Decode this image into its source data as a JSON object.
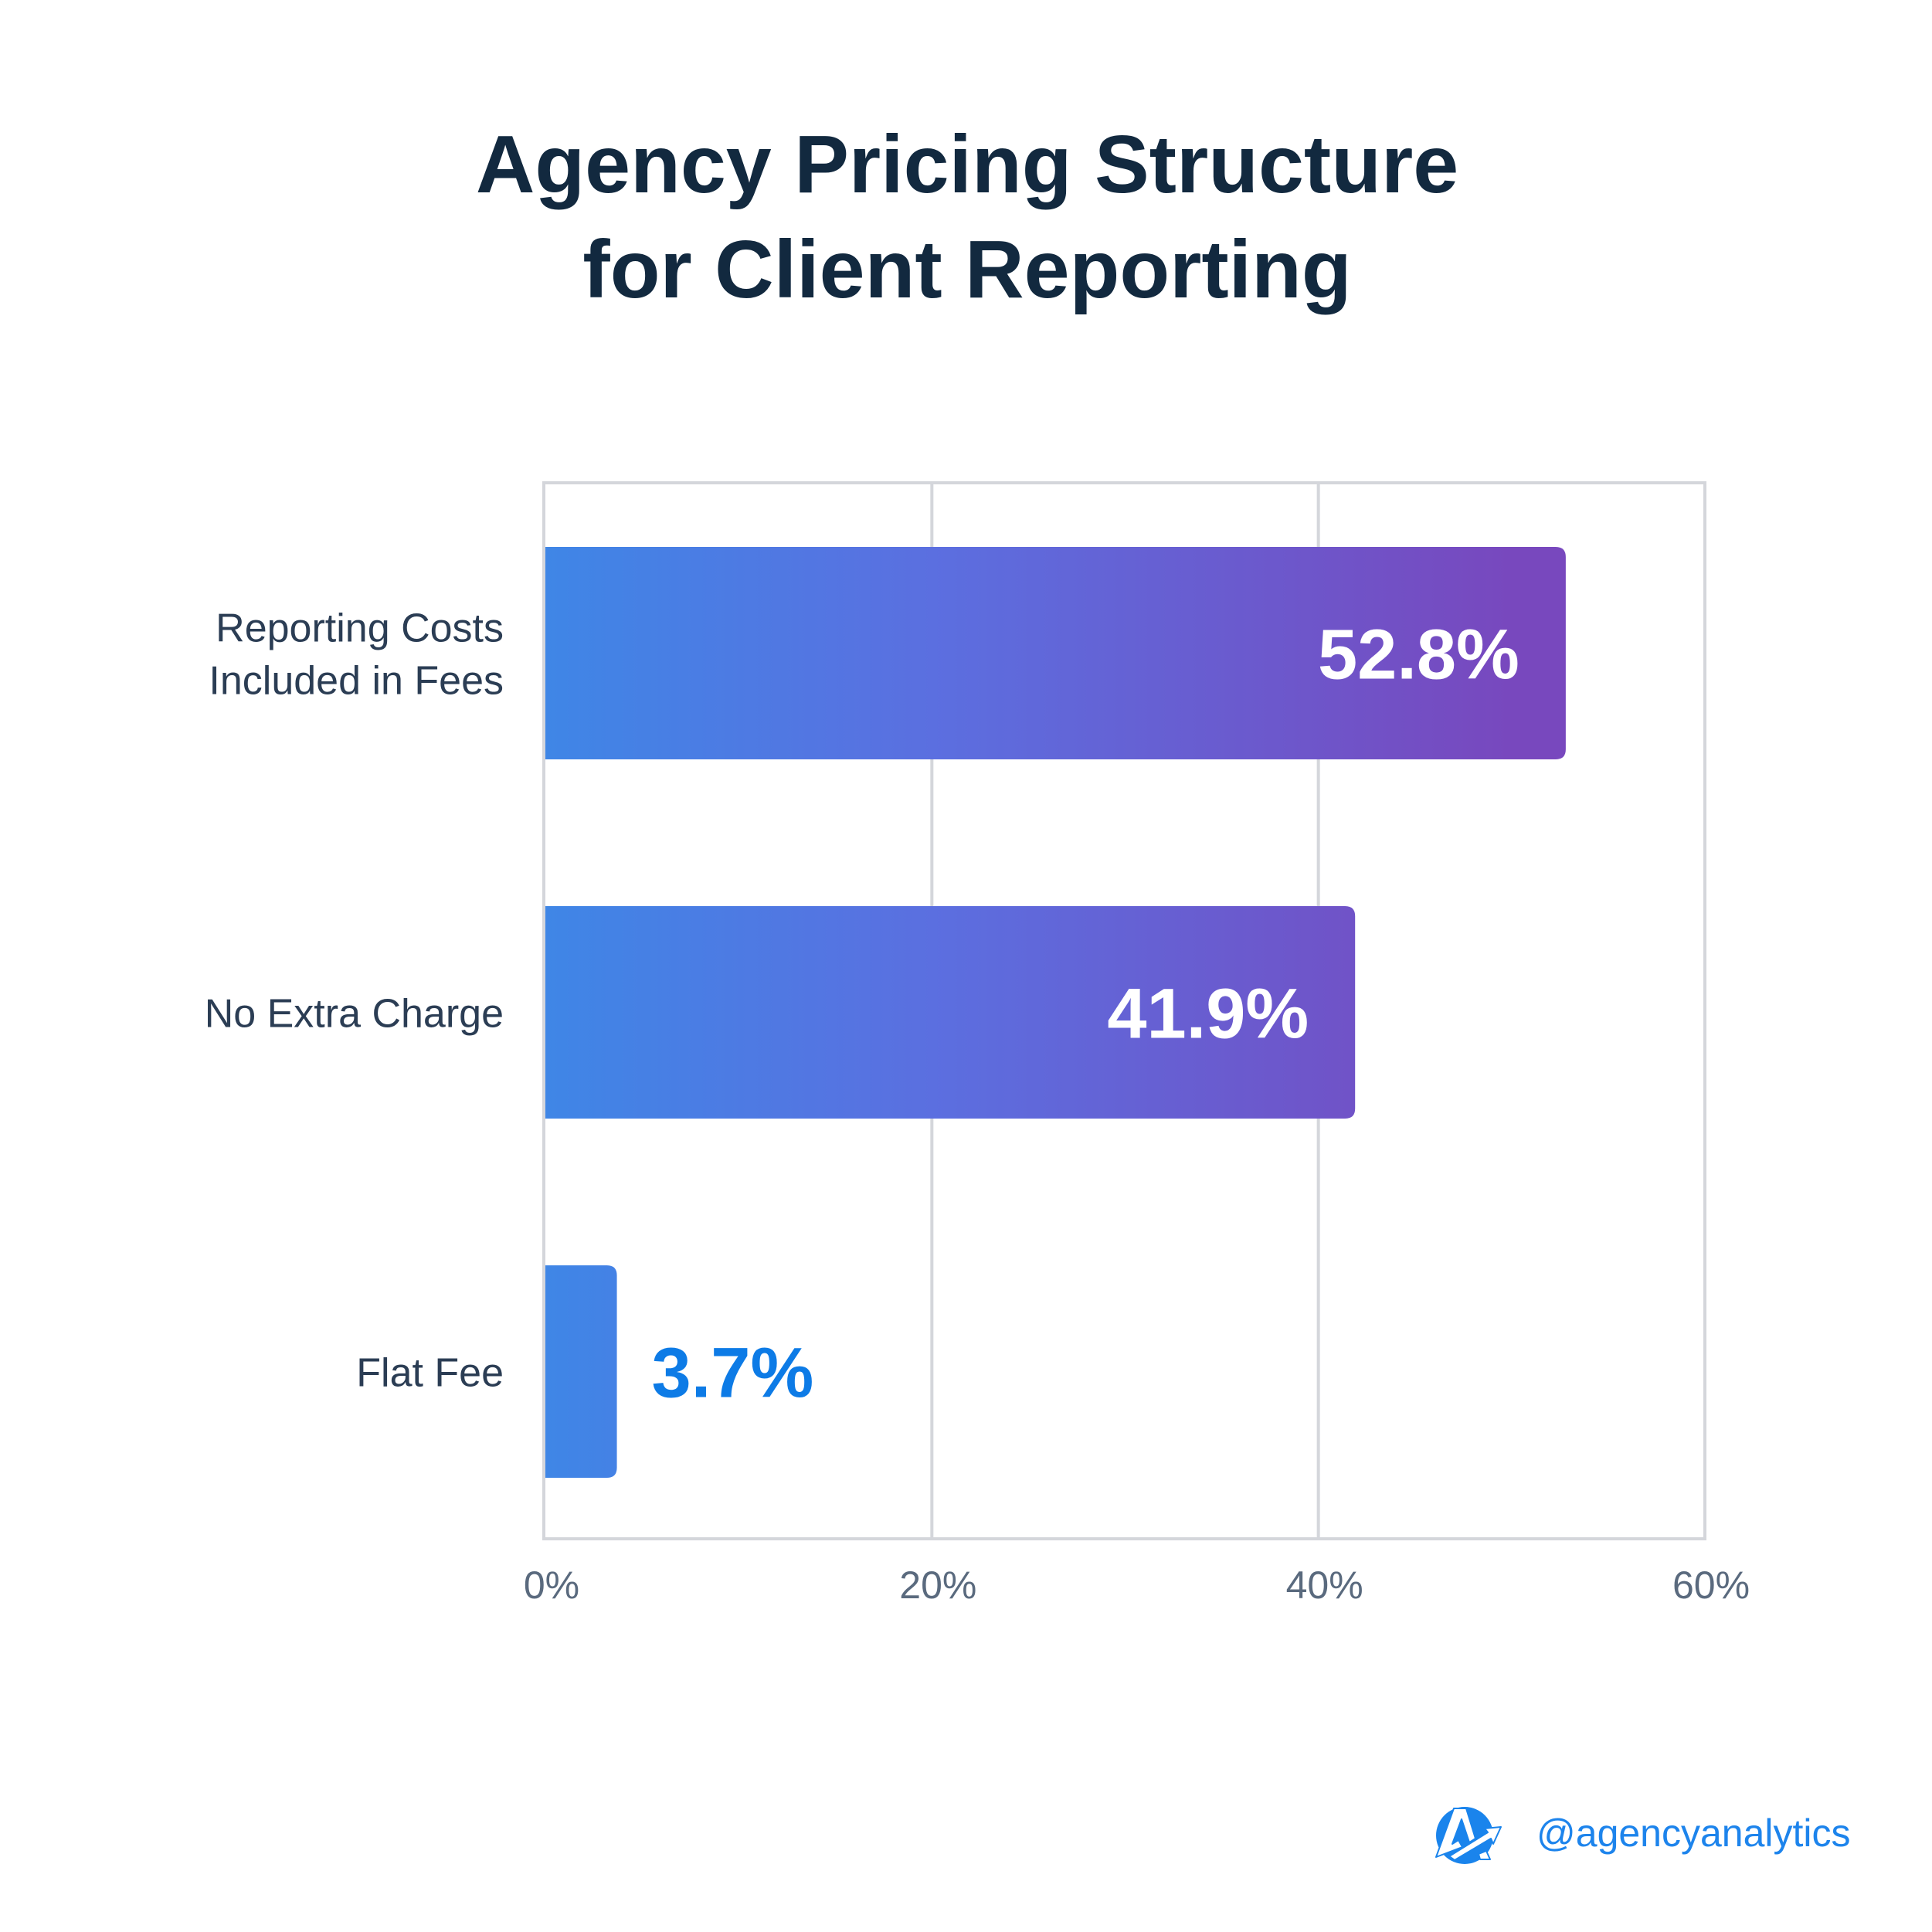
{
  "chart_data": {
    "type": "bar",
    "orientation": "horizontal",
    "title": "Agency Pricing Structure for Client Reporting",
    "title_lines": [
      "Agency Pricing Structure",
      "for Client Reporting"
    ],
    "categories": [
      [
        "Reporting Costs",
        "Included in Fees"
      ],
      [
        "No Extra Charge"
      ],
      [
        "Flat Fee"
      ]
    ],
    "values": [
      52.8,
      41.9,
      3.7
    ],
    "value_labels": [
      "52.8%",
      "41.9%",
      "3.7%"
    ],
    "xlabel": "",
    "ylabel": "",
    "xlim": [
      0,
      60
    ],
    "xticks": [
      0,
      20,
      40,
      60
    ],
    "xtick_labels": [
      "0%",
      "20%",
      "40%",
      "60%"
    ],
    "grid": true,
    "legend": "none",
    "colors": {
      "bar_gradient_start": "#3f86e6",
      "bar_gradient_mid": "#5b6fe0",
      "bar_gradient_end": "#7848be",
      "value_label_inside": "#ffffff",
      "value_label_outside": "#0d7be6",
      "grid": "#d4d6db",
      "title": "#12293f",
      "category_label": "#2b3d54",
      "tick_label": "#5a6a7e"
    }
  },
  "branding": {
    "logo_icon": "agencyanalytics-logo-icon",
    "logo_color": "#1a84ec",
    "handle": "@agencyanalytics"
  }
}
